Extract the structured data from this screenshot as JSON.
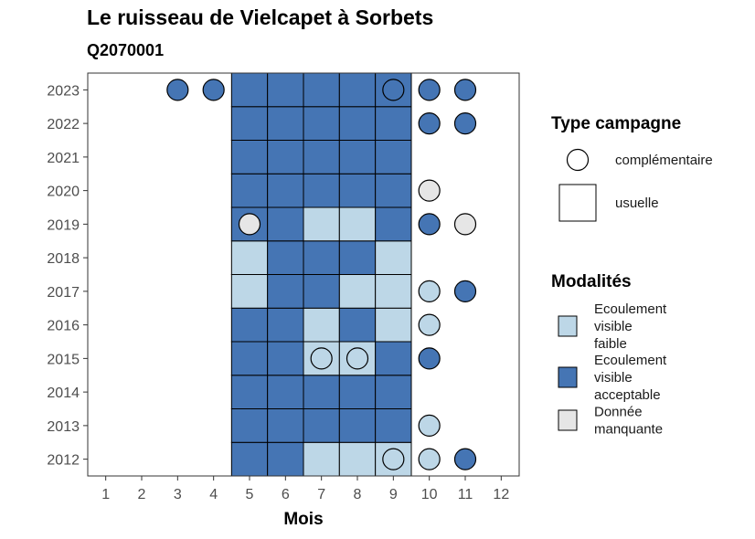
{
  "title": "Le ruisseau de Vielcapet à Sorbets",
  "subtitle": "Q2070001",
  "colors": {
    "Ecoulement visible faible": "#bdd7e7",
    "Ecoulement visible acceptable": "#4575b4",
    "Donnée manquante": "#e6e6e6"
  },
  "chart_data": {
    "type": "heatmap",
    "xlabel": "Mois",
    "ylabel": "",
    "x_ticks": [
      1,
      2,
      3,
      4,
      5,
      6,
      7,
      8,
      9,
      10,
      11,
      12
    ],
    "y_ticks": [
      2012,
      2013,
      2014,
      2015,
      2016,
      2017,
      2018,
      2019,
      2020,
      2021,
      2022,
      2023
    ],
    "legend_shape": {
      "title": "Type campagne",
      "entries": [
        {
          "label": "complémentaire",
          "shape": "circle"
        },
        {
          "label": "usuelle",
          "shape": "square"
        }
      ]
    },
    "legend_fill": {
      "title": "Modalités",
      "entries": [
        {
          "key": "Ecoulement visible faible",
          "label_lines": [
            "Ecoulement",
            "visible",
            "faible"
          ]
        },
        {
          "key": "Ecoulement visible acceptable",
          "label_lines": [
            "Ecoulement",
            "visible",
            "acceptable"
          ]
        },
        {
          "key": "Donnée manquante",
          "label_lines": [
            "Donnée",
            "manquante"
          ]
        }
      ]
    },
    "observations": [
      {
        "year": 2012,
        "month": 5,
        "type": "usuelle",
        "modalite": "Ecoulement visible acceptable"
      },
      {
        "year": 2012,
        "month": 6,
        "type": "usuelle",
        "modalite": "Ecoulement visible acceptable"
      },
      {
        "year": 2012,
        "month": 7,
        "type": "usuelle",
        "modalite": "Ecoulement visible faible"
      },
      {
        "year": 2012,
        "month": 8,
        "type": "usuelle",
        "modalite": "Ecoulement visible faible"
      },
      {
        "year": 2012,
        "month": 9,
        "type": "usuelle",
        "modalite": "Ecoulement visible faible"
      },
      {
        "year": 2012,
        "month": 9,
        "type": "complémentaire",
        "modalite": "Ecoulement visible faible"
      },
      {
        "year": 2012,
        "month": 10,
        "type": "complémentaire",
        "modalite": "Ecoulement visible faible"
      },
      {
        "year": 2012,
        "month": 11,
        "type": "complémentaire",
        "modalite": "Ecoulement visible acceptable"
      },
      {
        "year": 2013,
        "month": 5,
        "type": "usuelle",
        "modalite": "Ecoulement visible acceptable"
      },
      {
        "year": 2013,
        "month": 6,
        "type": "usuelle",
        "modalite": "Ecoulement visible acceptable"
      },
      {
        "year": 2013,
        "month": 7,
        "type": "usuelle",
        "modalite": "Ecoulement visible acceptable"
      },
      {
        "year": 2013,
        "month": 8,
        "type": "usuelle",
        "modalite": "Ecoulement visible acceptable"
      },
      {
        "year": 2013,
        "month": 9,
        "type": "usuelle",
        "modalite": "Ecoulement visible acceptable"
      },
      {
        "year": 2013,
        "month": 10,
        "type": "complémentaire",
        "modalite": "Ecoulement visible faible"
      },
      {
        "year": 2014,
        "month": 5,
        "type": "usuelle",
        "modalite": "Ecoulement visible acceptable"
      },
      {
        "year": 2014,
        "month": 6,
        "type": "usuelle",
        "modalite": "Ecoulement visible acceptable"
      },
      {
        "year": 2014,
        "month": 7,
        "type": "usuelle",
        "modalite": "Ecoulement visible acceptable"
      },
      {
        "year": 2014,
        "month": 8,
        "type": "usuelle",
        "modalite": "Ecoulement visible acceptable"
      },
      {
        "year": 2014,
        "month": 9,
        "type": "usuelle",
        "modalite": "Ecoulement visible acceptable"
      },
      {
        "year": 2015,
        "month": 5,
        "type": "usuelle",
        "modalite": "Ecoulement visible acceptable"
      },
      {
        "year": 2015,
        "month": 6,
        "type": "usuelle",
        "modalite": "Ecoulement visible acceptable"
      },
      {
        "year": 2015,
        "month": 7,
        "type": "usuelle",
        "modalite": "Ecoulement visible faible"
      },
      {
        "year": 2015,
        "month": 7,
        "type": "complémentaire",
        "modalite": "Ecoulement visible faible"
      },
      {
        "year": 2015,
        "month": 8,
        "type": "usuelle",
        "modalite": "Ecoulement visible faible"
      },
      {
        "year": 2015,
        "month": 8,
        "type": "complémentaire",
        "modalite": "Ecoulement visible faible"
      },
      {
        "year": 2015,
        "month": 9,
        "type": "usuelle",
        "modalite": "Ecoulement visible acceptable"
      },
      {
        "year": 2015,
        "month": 10,
        "type": "complémentaire",
        "modalite": "Ecoulement visible acceptable"
      },
      {
        "year": 2016,
        "month": 5,
        "type": "usuelle",
        "modalite": "Ecoulement visible acceptable"
      },
      {
        "year": 2016,
        "month": 6,
        "type": "usuelle",
        "modalite": "Ecoulement visible acceptable"
      },
      {
        "year": 2016,
        "month": 7,
        "type": "usuelle",
        "modalite": "Ecoulement visible faible"
      },
      {
        "year": 2016,
        "month": 8,
        "type": "usuelle",
        "modalite": "Ecoulement visible acceptable"
      },
      {
        "year": 2016,
        "month": 9,
        "type": "usuelle",
        "modalite": "Ecoulement visible faible"
      },
      {
        "year": 2016,
        "month": 10,
        "type": "complémentaire",
        "modalite": "Ecoulement visible faible"
      },
      {
        "year": 2017,
        "month": 5,
        "type": "usuelle",
        "modalite": "Ecoulement visible faible"
      },
      {
        "year": 2017,
        "month": 6,
        "type": "usuelle",
        "modalite": "Ecoulement visible acceptable"
      },
      {
        "year": 2017,
        "month": 7,
        "type": "usuelle",
        "modalite": "Ecoulement visible acceptable"
      },
      {
        "year": 2017,
        "month": 8,
        "type": "usuelle",
        "modalite": "Ecoulement visible faible"
      },
      {
        "year": 2017,
        "month": 9,
        "type": "usuelle",
        "modalite": "Ecoulement visible faible"
      },
      {
        "year": 2017,
        "month": 10,
        "type": "complémentaire",
        "modalite": "Ecoulement visible faible"
      },
      {
        "year": 2017,
        "month": 11,
        "type": "complémentaire",
        "modalite": "Ecoulement visible acceptable"
      },
      {
        "year": 2018,
        "month": 5,
        "type": "usuelle",
        "modalite": "Ecoulement visible faible"
      },
      {
        "year": 2018,
        "month": 6,
        "type": "usuelle",
        "modalite": "Ecoulement visible acceptable"
      },
      {
        "year": 2018,
        "month": 7,
        "type": "usuelle",
        "modalite": "Ecoulement visible acceptable"
      },
      {
        "year": 2018,
        "month": 8,
        "type": "usuelle",
        "modalite": "Ecoulement visible acceptable"
      },
      {
        "year": 2018,
        "month": 9,
        "type": "usuelle",
        "modalite": "Ecoulement visible faible"
      },
      {
        "year": 2019,
        "month": 5,
        "type": "usuelle",
        "modalite": "Ecoulement visible acceptable"
      },
      {
        "year": 2019,
        "month": 5,
        "type": "complémentaire",
        "modalite": "Donnée manquante"
      },
      {
        "year": 2019,
        "month": 6,
        "type": "usuelle",
        "modalite": "Ecoulement visible acceptable"
      },
      {
        "year": 2019,
        "month": 7,
        "type": "usuelle",
        "modalite": "Ecoulement visible faible"
      },
      {
        "year": 2019,
        "month": 8,
        "type": "usuelle",
        "modalite": "Ecoulement visible faible"
      },
      {
        "year": 2019,
        "month": 9,
        "type": "usuelle",
        "modalite": "Ecoulement visible acceptable"
      },
      {
        "year": 2019,
        "month": 10,
        "type": "complémentaire",
        "modalite": "Ecoulement visible acceptable"
      },
      {
        "year": 2019,
        "month": 11,
        "type": "complémentaire",
        "modalite": "Donnée manquante"
      },
      {
        "year": 2020,
        "month": 5,
        "type": "usuelle",
        "modalite": "Ecoulement visible acceptable"
      },
      {
        "year": 2020,
        "month": 6,
        "type": "usuelle",
        "modalite": "Ecoulement visible acceptable"
      },
      {
        "year": 2020,
        "month": 7,
        "type": "usuelle",
        "modalite": "Ecoulement visible acceptable"
      },
      {
        "year": 2020,
        "month": 8,
        "type": "usuelle",
        "modalite": "Ecoulement visible acceptable"
      },
      {
        "year": 2020,
        "month": 9,
        "type": "usuelle",
        "modalite": "Ecoulement visible acceptable"
      },
      {
        "year": 2020,
        "month": 10,
        "type": "complémentaire",
        "modalite": "Donnée manquante"
      },
      {
        "year": 2021,
        "month": 5,
        "type": "usuelle",
        "modalite": "Ecoulement visible acceptable"
      },
      {
        "year": 2021,
        "month": 6,
        "type": "usuelle",
        "modalite": "Ecoulement visible acceptable"
      },
      {
        "year": 2021,
        "month": 7,
        "type": "usuelle",
        "modalite": "Ecoulement visible acceptable"
      },
      {
        "year": 2021,
        "month": 8,
        "type": "usuelle",
        "modalite": "Ecoulement visible acceptable"
      },
      {
        "year": 2021,
        "month": 9,
        "type": "usuelle",
        "modalite": "Ecoulement visible acceptable"
      },
      {
        "year": 2022,
        "month": 5,
        "type": "usuelle",
        "modalite": "Ecoulement visible acceptable"
      },
      {
        "year": 2022,
        "month": 6,
        "type": "usuelle",
        "modalite": "Ecoulement visible acceptable"
      },
      {
        "year": 2022,
        "month": 7,
        "type": "usuelle",
        "modalite": "Ecoulement visible acceptable"
      },
      {
        "year": 2022,
        "month": 8,
        "type": "usuelle",
        "modalite": "Ecoulement visible acceptable"
      },
      {
        "year": 2022,
        "month": 9,
        "type": "usuelle",
        "modalite": "Ecoulement visible acceptable"
      },
      {
        "year": 2022,
        "month": 10,
        "type": "complémentaire",
        "modalite": "Ecoulement visible acceptable"
      },
      {
        "year": 2022,
        "month": 11,
        "type": "complémentaire",
        "modalite": "Ecoulement visible acceptable"
      },
      {
        "year": 2023,
        "month": 3,
        "type": "complémentaire",
        "modalite": "Ecoulement visible acceptable"
      },
      {
        "year": 2023,
        "month": 4,
        "type": "complémentaire",
        "modalite": "Ecoulement visible acceptable"
      },
      {
        "year": 2023,
        "month": 5,
        "type": "usuelle",
        "modalite": "Ecoulement visible acceptable"
      },
      {
        "year": 2023,
        "month": 6,
        "type": "usuelle",
        "modalite": "Ecoulement visible acceptable"
      },
      {
        "year": 2023,
        "month": 7,
        "type": "usuelle",
        "modalite": "Ecoulement visible acceptable"
      },
      {
        "year": 2023,
        "month": 8,
        "type": "usuelle",
        "modalite": "Ecoulement visible acceptable"
      },
      {
        "year": 2023,
        "month": 9,
        "type": "usuelle",
        "modalite": "Ecoulement visible acceptable"
      },
      {
        "year": 2023,
        "month": 9,
        "type": "complémentaire",
        "modalite": "Ecoulement visible acceptable"
      },
      {
        "year": 2023,
        "month": 10,
        "type": "complémentaire",
        "modalite": "Ecoulement visible acceptable"
      },
      {
        "year": 2023,
        "month": 11,
        "type": "complémentaire",
        "modalite": "Ecoulement visible acceptable"
      }
    ]
  }
}
